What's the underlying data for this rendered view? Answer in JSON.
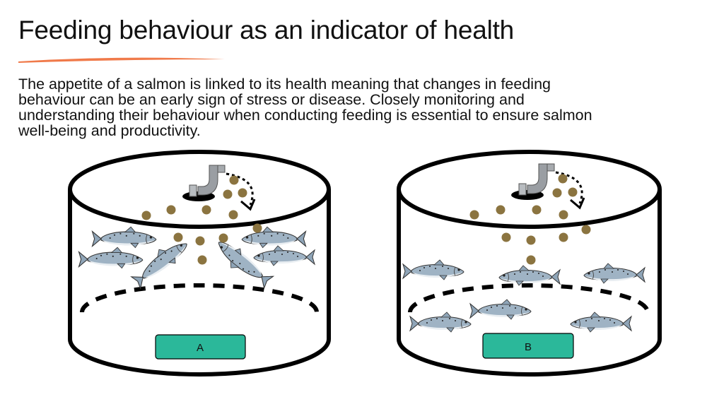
{
  "slide": {
    "title": "Feeding behaviour as an indicator of health",
    "paragraph": "The appetite of a salmon is linked to its health meaning that changes in feeding behaviour can be an early sign of stress or disease. Closely monitoring and understanding their behaviour when conducting feeding is essential to ensure salmon well-being and productivity."
  },
  "tanks": [
    {
      "label": "A"
    },
    {
      "label": "B"
    }
  ],
  "colors": {
    "accent_underline": "#f07a4a",
    "label_box": "#2bb89a",
    "pellet": "#8b7440",
    "fish_body": "#8fa5b8",
    "pipe": "#9a9ea3"
  },
  "icons": [
    "feed-pipe-icon",
    "salmon-icon",
    "feed-pellet-icon",
    "feeding-arrow-icon"
  ]
}
